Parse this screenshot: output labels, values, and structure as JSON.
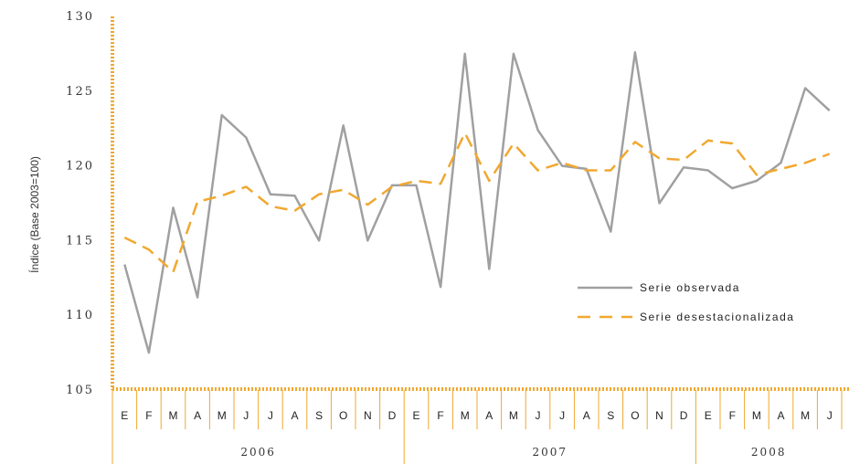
{
  "chart_data": {
    "type": "line",
    "ylabel": "Índice (Base 2003=100)",
    "ylim": [
      105,
      130
    ],
    "yticks": [
      105,
      110,
      115,
      120,
      125,
      130
    ],
    "x": [
      "E",
      "F",
      "M",
      "A",
      "M",
      "J",
      "J",
      "A",
      "S",
      "O",
      "N",
      "D",
      "E",
      "F",
      "M",
      "A",
      "M",
      "J",
      "J",
      "A",
      "S",
      "O",
      "N",
      "D",
      "E",
      "F",
      "M",
      "A",
      "M",
      "J"
    ],
    "years": [
      {
        "label": "2006",
        "start": 0,
        "count": 12
      },
      {
        "label": "2007",
        "start": 12,
        "count": 12
      },
      {
        "label": "2008",
        "start": 24,
        "count": 6
      }
    ],
    "series": [
      {
        "name": "Serie observada",
        "color": "#a0a0a0",
        "style": "solid",
        "values": [
          113.4,
          107.5,
          117.2,
          111.2,
          123.4,
          121.9,
          118.1,
          118.0,
          115.0,
          122.7,
          115.0,
          118.7,
          118.7,
          111.9,
          127.5,
          113.1,
          127.5,
          122.4,
          120.0,
          119.8,
          115.6,
          127.6,
          117.5,
          119.9,
          119.7,
          118.5,
          119.0,
          120.2,
          125.2,
          123.7
        ]
      },
      {
        "name": "Serie desestacionalizada",
        "color": "#f0a830",
        "style": "dashed",
        "values": [
          115.2,
          114.4,
          112.9,
          117.6,
          118.0,
          118.6,
          117.3,
          117.0,
          118.1,
          118.4,
          117.4,
          118.6,
          119.0,
          118.8,
          122.2,
          119.0,
          121.5,
          119.7,
          120.2,
          119.7,
          119.7,
          121.6,
          120.5,
          120.4,
          121.7,
          121.5,
          119.4,
          119.8,
          120.2,
          120.8
        ]
      }
    ],
    "legend": "right-middle"
  }
}
